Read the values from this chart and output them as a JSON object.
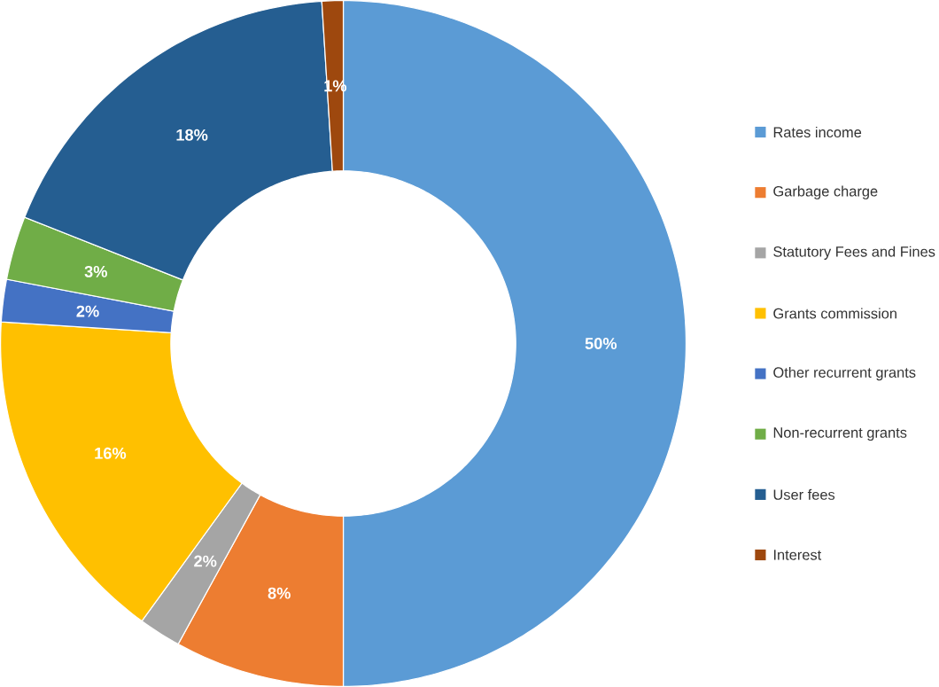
{
  "chart_data": {
    "type": "donut",
    "categories": [
      "Rates income",
      "Garbage charge",
      "Statutory Fees and Fines",
      "Grants commission",
      "Other recurrent grants",
      "Non-recurrent grants",
      "User fees",
      "Interest"
    ],
    "values": [
      50,
      8,
      2,
      16,
      2,
      3,
      18,
      1
    ],
    "value_labels": [
      "50%",
      "8%",
      "2%",
      "16%",
      "2%",
      "3%",
      "18%",
      "1%"
    ],
    "colors": [
      "#5b9bd5",
      "#ed7d31",
      "#a5a5a5",
      "#ffc000",
      "#4472c4",
      "#70ad47",
      "#255e91",
      "#9e480e"
    ],
    "legend": "right"
  }
}
